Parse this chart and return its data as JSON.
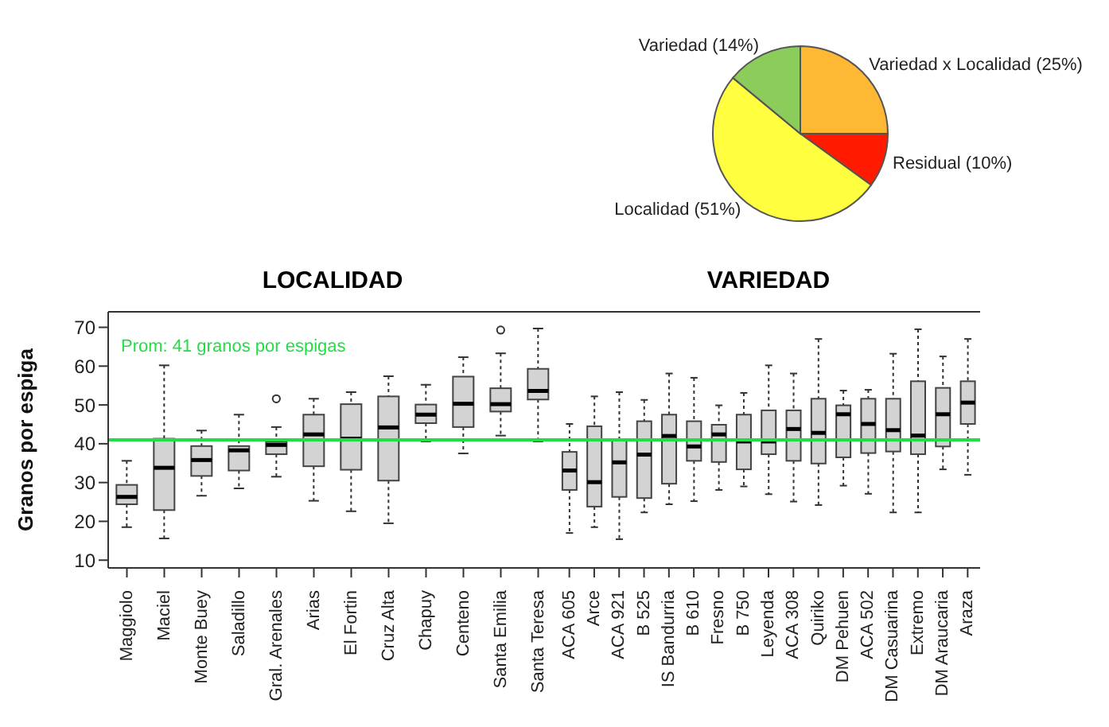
{
  "chart_data": [
    {
      "type": "pie",
      "categories": [
        "Variedad x Localidad (25%)",
        "Residual (10%)",
        "Localidad (51%)",
        "Variedad (14%)"
      ],
      "values": [
        25,
        10,
        51,
        14
      ],
      "colors": [
        "#ffb833",
        "#ff1a00",
        "#ffff40",
        "#8ccc5a"
      ]
    },
    {
      "type": "box",
      "title": "LOCALIDAD",
      "ylabel": "Granos por espiga",
      "color": "#d3d3d3",
      "ylim": [
        8,
        74
      ],
      "yticks": [
        10,
        20,
        30,
        40,
        50,
        60,
        70
      ],
      "categories": [
        "Maggiolo",
        "Maciel",
        "Monte Buey",
        "Saladillo",
        "Gral. Arenales",
        "Arias",
        "El Fortin",
        "Cruz Alta",
        "Chapuy",
        "Centeno",
        "Santa Emilia",
        "Santa Teresa"
      ],
      "boxes": [
        {
          "low": 18.5,
          "q1": 24.4,
          "median": 26.3,
          "q3": 29.4,
          "high": 35.6
        },
        {
          "low": 15.6,
          "q1": 22.9,
          "median": 33.8,
          "q3": 41.3,
          "high": 60.2
        },
        {
          "low": 26.6,
          "q1": 31.7,
          "median": 35.8,
          "q3": 39.4,
          "high": 43.4
        },
        {
          "low": 28.5,
          "q1": 33.1,
          "median": 38.3,
          "q3": 39.4,
          "high": 47.5
        },
        {
          "low": 31.5,
          "q1": 37.3,
          "median": 39.7,
          "q3": 40.5,
          "high": 44.3,
          "outliers": [
            51.6
          ]
        },
        {
          "low": 25.3,
          "q1": 34.2,
          "median": 42.4,
          "q3": 47.5,
          "high": 51.6
        },
        {
          "low": 22.6,
          "q1": 33.3,
          "median": 41.3,
          "q3": 50.2,
          "high": 53.3
        },
        {
          "low": 19.5,
          "q1": 30.5,
          "median": 44.2,
          "q3": 52.2,
          "high": 57.4
        },
        {
          "low": 40.6,
          "q1": 45.3,
          "median": 47.5,
          "q3": 50.1,
          "high": 55.2
        },
        {
          "low": 37.5,
          "q1": 44.3,
          "median": 50.3,
          "q3": 57.3,
          "high": 62.3
        },
        {
          "low": 42.1,
          "q1": 48.3,
          "median": 50.2,
          "q3": 54.3,
          "high": 63.3,
          "outliers": [
            69.3
          ]
        },
        {
          "low": 40.6,
          "q1": 51.4,
          "median": 53.6,
          "q3": 59.3,
          "high": 69.7
        }
      ],
      "ref_lines": [
        {
          "axis": "y",
          "value": 41,
          "label": "Prom: 41 granos por espigas",
          "color": "#22dd44"
        }
      ]
    },
    {
      "type": "box",
      "title": "VARIEDAD",
      "color": "#d3d3d3",
      "ylim": [
        8,
        74
      ],
      "yticks": [
        10,
        20,
        30,
        40,
        50,
        60,
        70
      ],
      "tick_labels": "x",
      "categories": [
        "ACA 605",
        "Arce",
        "ACA 921",
        "B 525",
        "IS Bandurria",
        "B 610",
        "Fresno",
        "B 750",
        "Leyenda",
        "ACA 308",
        "Quiriko",
        "DM Pehuen",
        "ACA 502",
        "DM Casuarina",
        "Extremo",
        "DM Araucaria",
        "Araza"
      ],
      "boxes": [
        {
          "low": 17.0,
          "q1": 28.1,
          "median": 33.1,
          "q3": 37.9,
          "high": 45.1
        },
        {
          "low": 18.5,
          "q1": 23.8,
          "median": 30.1,
          "q3": 44.5,
          "high": 52.2
        },
        {
          "low": 15.4,
          "q1": 26.3,
          "median": 35.2,
          "q3": 41.0,
          "high": 53.3
        },
        {
          "low": 22.3,
          "q1": 26.0,
          "median": 37.2,
          "q3": 45.8,
          "high": 51.3
        },
        {
          "low": 24.4,
          "q1": 29.7,
          "median": 42.0,
          "q3": 47.5,
          "high": 58.1
        },
        {
          "low": 25.2,
          "q1": 35.6,
          "median": 39.3,
          "q3": 45.8,
          "high": 57.0
        },
        {
          "low": 28.1,
          "q1": 35.3,
          "median": 42.4,
          "q3": 44.9,
          "high": 49.9
        },
        {
          "low": 29.0,
          "q1": 33.4,
          "median": 40.6,
          "q3": 47.5,
          "high": 53.1
        },
        {
          "low": 27.0,
          "q1": 37.3,
          "median": 40.6,
          "q3": 48.6,
          "high": 60.2
        },
        {
          "low": 25.1,
          "q1": 35.6,
          "median": 43.8,
          "q3": 48.6,
          "high": 58.1
        },
        {
          "low": 24.2,
          "q1": 34.9,
          "median": 42.8,
          "q3": 51.6,
          "high": 67.0
        },
        {
          "low": 29.2,
          "q1": 36.5,
          "median": 47.6,
          "q3": 49.9,
          "high": 53.7
        },
        {
          "low": 27.1,
          "q1": 37.6,
          "median": 45.1,
          "q3": 51.6,
          "high": 53.9
        },
        {
          "low": 22.3,
          "q1": 38.0,
          "median": 43.5,
          "q3": 51.6,
          "high": 63.2
        },
        {
          "low": 22.3,
          "q1": 37.3,
          "median": 42.1,
          "q3": 56.1,
          "high": 69.5
        },
        {
          "low": 33.4,
          "q1": 39.3,
          "median": 47.6,
          "q3": 54.4,
          "high": 62.5
        },
        {
          "low": 32.0,
          "q1": 45.1,
          "median": 50.6,
          "q3": 56.1,
          "high": 67.0
        }
      ],
      "ref_lines": [
        {
          "axis": "y",
          "value": 41,
          "color": "#22dd44"
        }
      ]
    }
  ]
}
